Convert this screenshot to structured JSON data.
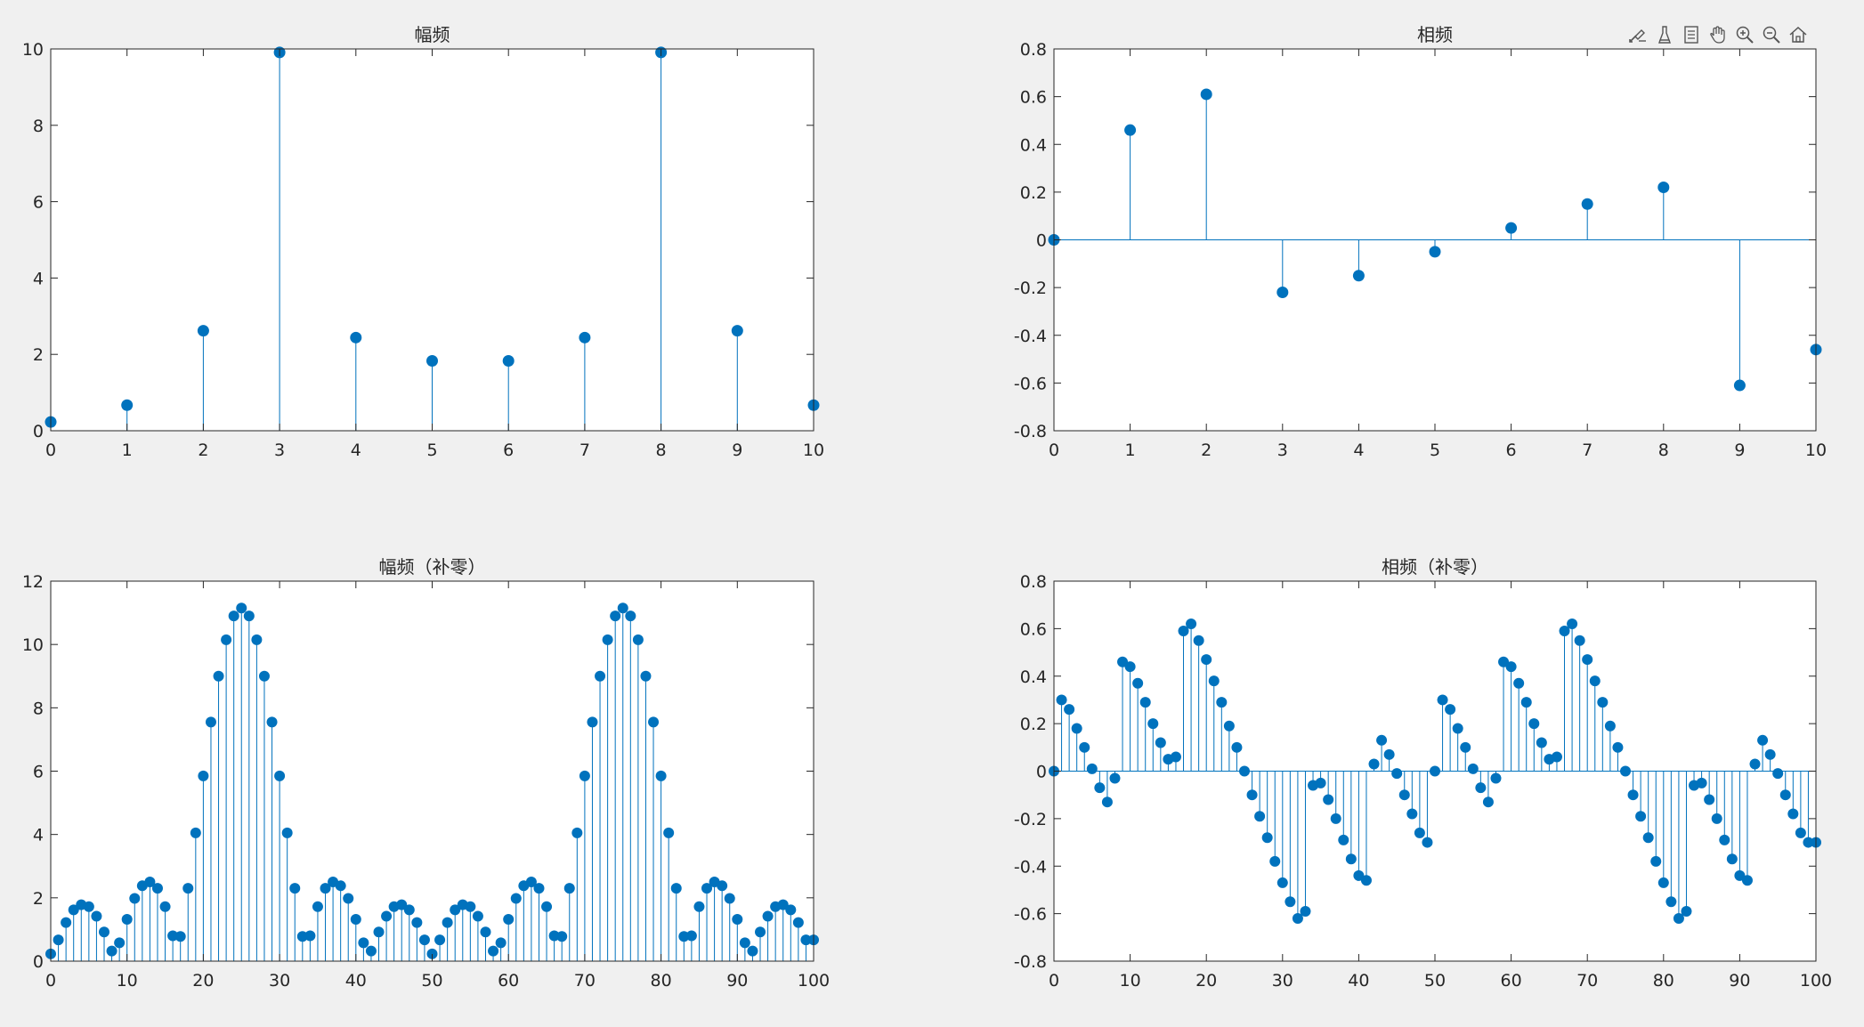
{
  "toolbar": {
    "buttons": [
      {
        "name": "edit-plot-icon"
      },
      {
        "name": "brush-icon"
      },
      {
        "name": "data-tips-icon"
      },
      {
        "name": "pan-hand-icon"
      },
      {
        "name": "zoom-in-icon"
      },
      {
        "name": "zoom-out-icon"
      },
      {
        "name": "home-icon"
      }
    ]
  },
  "colors": {
    "stem": "#0072bd",
    "axes_bg": "#ffffff",
    "figure_bg": "#f0f0f0",
    "axis_line": "#262626"
  },
  "chart_data": [
    {
      "type": "stem",
      "title": "幅频",
      "xlim": [
        0,
        10
      ],
      "ylim": [
        0,
        10
      ],
      "xticks": [
        0,
        1,
        2,
        3,
        4,
        5,
        6,
        7,
        8,
        9,
        10
      ],
      "yticks": [
        0,
        2,
        4,
        6,
        8,
        10
      ],
      "x": [
        0,
        1,
        2,
        3,
        4,
        5,
        6,
        7,
        8,
        9,
        10
      ],
      "y": [
        0.23,
        0.67,
        2.62,
        9.91,
        2.44,
        1.83,
        1.83,
        2.44,
        9.91,
        2.62,
        0.67
      ],
      "grid": false
    },
    {
      "type": "stem",
      "title": "相频",
      "xlim": [
        0,
        10
      ],
      "ylim": [
        -0.8,
        0.8
      ],
      "xticks": [
        0,
        1,
        2,
        3,
        4,
        5,
        6,
        7,
        8,
        9,
        10
      ],
      "yticks": [
        -0.8,
        -0.6,
        -0.4,
        -0.2,
        0,
        0.2,
        0.4,
        0.6,
        0.8
      ],
      "x": [
        0,
        1,
        2,
        3,
        4,
        5,
        6,
        7,
        8,
        9,
        10
      ],
      "y": [
        0.0,
        0.46,
        0.61,
        -0.22,
        -0.15,
        -0.05,
        0.05,
        0.15,
        0.22,
        -0.61,
        -0.46
      ],
      "grid": false
    },
    {
      "type": "stem",
      "title": "幅频（补零）",
      "xlim": [
        0,
        100
      ],
      "ylim": [
        0,
        12
      ],
      "xticks": [
        0,
        10,
        20,
        30,
        40,
        50,
        60,
        70,
        80,
        90,
        100
      ],
      "yticks": [
        0,
        2,
        4,
        6,
        8,
        10,
        12
      ],
      "x": [
        0,
        1,
        2,
        3,
        4,
        5,
        6,
        7,
        8,
        9,
        10,
        11,
        12,
        13,
        14,
        15,
        16,
        17,
        18,
        19,
        20,
        21,
        22,
        23,
        24,
        25,
        26,
        27,
        28,
        29,
        30,
        31,
        32,
        33,
        34,
        35,
        36,
        37,
        38,
        39,
        40,
        41,
        42,
        43,
        44,
        45,
        46,
        47,
        48,
        49,
        50,
        51,
        52,
        53,
        54,
        55,
        56,
        57,
        58,
        59,
        60,
        61,
        62,
        63,
        64,
        65,
        66,
        67,
        68,
        69,
        70,
        71,
        72,
        73,
        74,
        75,
        76,
        77,
        78,
        79,
        80,
        81,
        82,
        83,
        84,
        85,
        86,
        87,
        88,
        89,
        90,
        91,
        92,
        93,
        94,
        95,
        96,
        97,
        98,
        99,
        100
      ],
      "y": [
        0.23,
        0.67,
        1.22,
        1.62,
        1.78,
        1.72,
        1.42,
        0.92,
        0.32,
        0.58,
        1.32,
        1.98,
        2.38,
        2.5,
        2.3,
        1.72,
        0.8,
        0.78,
        2.3,
        4.05,
        5.85,
        7.55,
        9.0,
        10.15,
        10.9,
        11.15,
        10.9,
        10.15,
        9.0,
        7.55,
        5.85,
        4.05,
        2.3,
        0.78,
        0.8,
        1.72,
        2.3,
        2.5,
        2.38,
        1.98,
        1.32,
        0.58,
        0.32,
        0.92,
        1.42,
        1.72,
        1.78,
        1.62,
        1.22,
        0.67,
        0.23,
        0.67,
        1.22,
        1.62,
        1.78,
        1.72,
        1.42,
        0.92,
        0.32,
        0.58,
        1.32,
        1.98,
        2.38,
        2.5,
        2.3,
        1.72,
        0.8,
        0.78,
        2.3,
        4.05,
        5.85,
        7.55,
        9.0,
        10.15,
        10.9,
        11.15,
        10.9,
        10.15,
        9.0,
        7.55,
        5.85,
        4.05,
        2.3,
        0.78,
        0.8,
        1.72,
        2.3,
        2.5,
        2.38,
        1.98,
        1.32,
        0.58,
        0.32,
        0.92,
        1.42,
        1.72,
        1.78,
        1.62,
        1.22,
        0.67,
        0.67
      ],
      "grid": false
    },
    {
      "type": "stem",
      "title": "相频（补零）",
      "xlim": [
        0,
        100
      ],
      "ylim": [
        -0.8,
        0.8
      ],
      "xticks": [
        0,
        10,
        20,
        30,
        40,
        50,
        60,
        70,
        80,
        90,
        100
      ],
      "yticks": [
        -0.8,
        -0.6,
        -0.4,
        -0.2,
        0,
        0.2,
        0.4,
        0.6,
        0.8
      ],
      "x": [
        0,
        1,
        2,
        3,
        4,
        5,
        6,
        7,
        8,
        9,
        10,
        11,
        12,
        13,
        14,
        15,
        16,
        17,
        18,
        19,
        20,
        21,
        22,
        23,
        24,
        25,
        26,
        27,
        28,
        29,
        30,
        31,
        32,
        33,
        34,
        35,
        36,
        37,
        38,
        39,
        40,
        41,
        42,
        43,
        44,
        45,
        46,
        47,
        48,
        49,
        50,
        51,
        52,
        53,
        54,
        55,
        56,
        57,
        58,
        59,
        60,
        61,
        62,
        63,
        64,
        65,
        66,
        67,
        68,
        69,
        70,
        71,
        72,
        73,
        74,
        75,
        76,
        77,
        78,
        79,
        80,
        81,
        82,
        83,
        84,
        85,
        86,
        87,
        88,
        89,
        90,
        91,
        92,
        93,
        94,
        95,
        96,
        97,
        98,
        99,
        100
      ],
      "y": [
        0.0,
        0.3,
        0.26,
        0.18,
        0.1,
        0.01,
        -0.07,
        -0.13,
        -0.03,
        0.46,
        0.44,
        0.37,
        0.29,
        0.2,
        0.12,
        0.05,
        0.06,
        0.59,
        0.62,
        0.55,
        0.47,
        0.38,
        0.29,
        0.19,
        0.1,
        0.0,
        -0.1,
        -0.19,
        -0.28,
        -0.38,
        -0.47,
        -0.55,
        -0.62,
        -0.59,
        -0.06,
        -0.05,
        -0.12,
        -0.2,
        -0.29,
        -0.37,
        -0.44,
        -0.46,
        0.03,
        0.13,
        0.07,
        -0.01,
        -0.1,
        -0.18,
        -0.26,
        -0.3,
        0.0,
        0.3,
        0.26,
        0.18,
        0.1,
        0.01,
        -0.07,
        -0.13,
        -0.03,
        0.46,
        0.44,
        0.37,
        0.29,
        0.2,
        0.12,
        0.05,
        0.06,
        0.59,
        0.62,
        0.55,
        0.47,
        0.38,
        0.29,
        0.19,
        0.1,
        0.0,
        -0.1,
        -0.19,
        -0.28,
        -0.38,
        -0.47,
        -0.55,
        -0.62,
        -0.59,
        -0.06,
        -0.05,
        -0.12,
        -0.2,
        -0.29,
        -0.37,
        -0.44,
        -0.46,
        0.03,
        0.13,
        0.07,
        -0.01,
        -0.1,
        -0.18,
        -0.26,
        -0.3,
        -0.3
      ],
      "grid": false
    }
  ]
}
